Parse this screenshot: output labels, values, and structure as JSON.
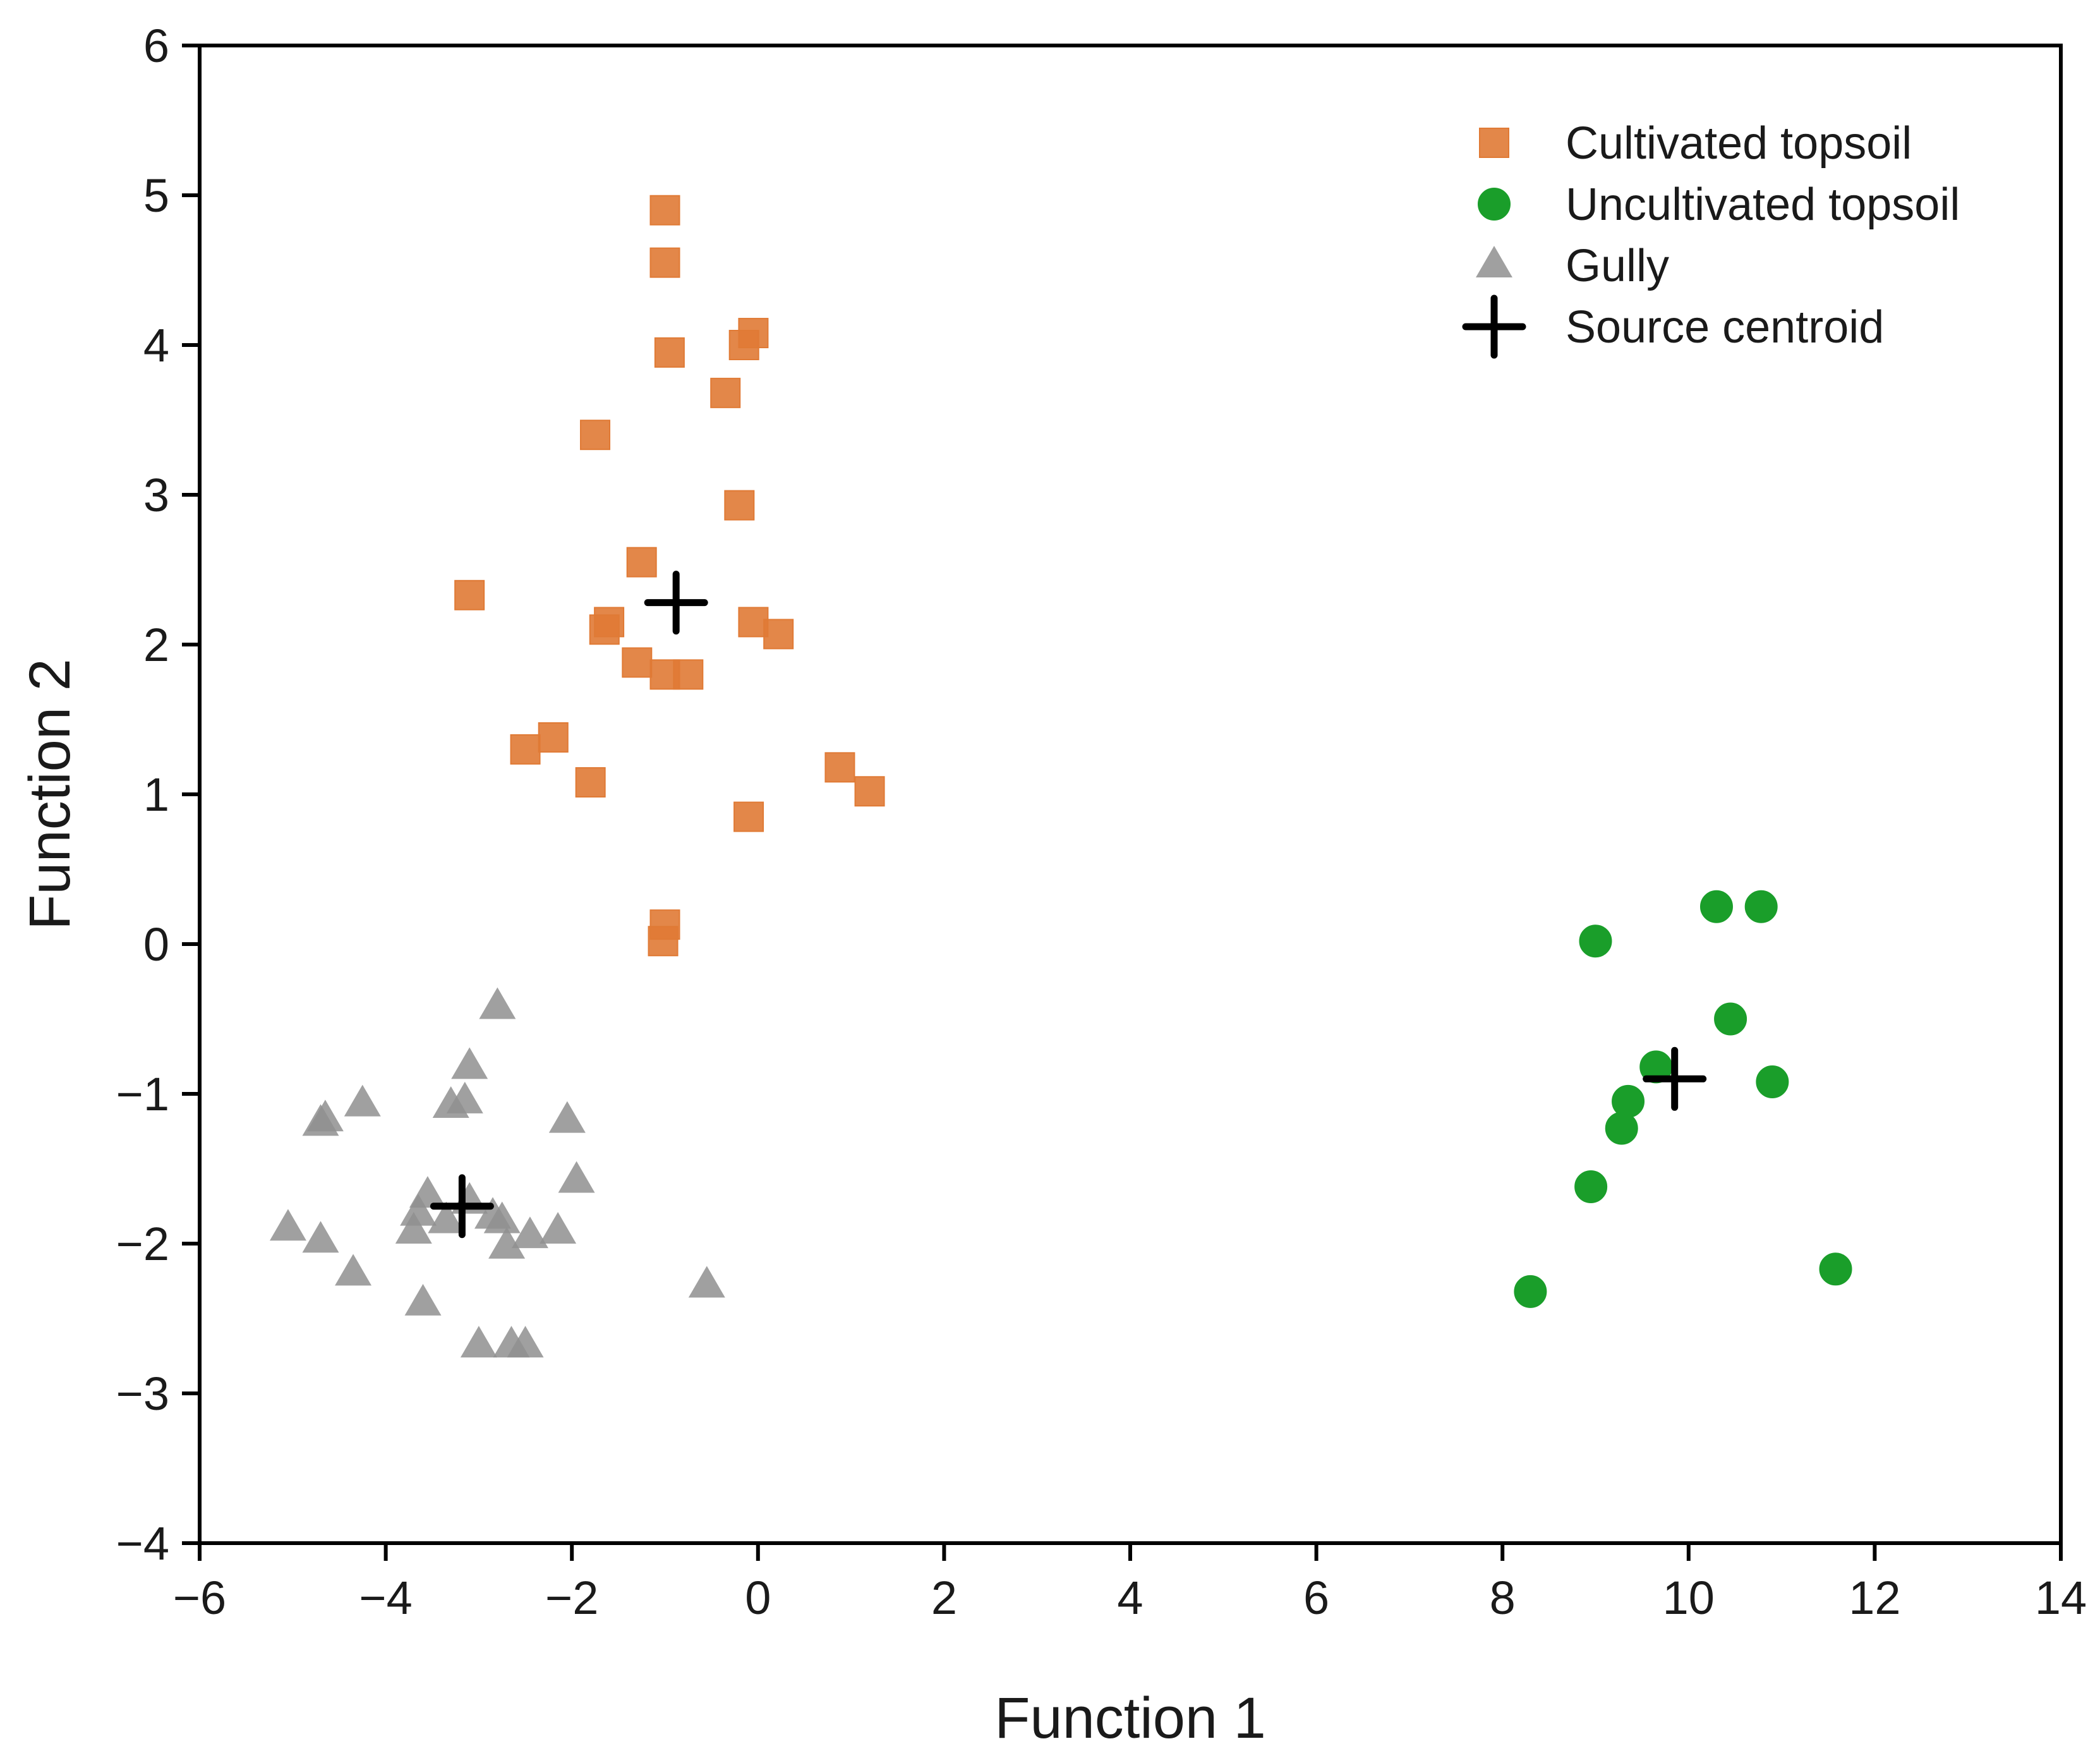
{
  "chart_data": {
    "type": "scatter",
    "title": "",
    "xlabel": "Function 1",
    "ylabel": "Function 2",
    "xlim": [
      -6,
      14
    ],
    "ylim": [
      -4,
      6
    ],
    "xticks": [
      -6,
      -4,
      -2,
      0,
      2,
      4,
      6,
      8,
      10,
      12,
      14
    ],
    "yticks": [
      -4,
      -3,
      -2,
      -1,
      0,
      1,
      2,
      3,
      4,
      5,
      6
    ],
    "xtick_labels": [
      "−6",
      "−4",
      "−2",
      "0",
      "2",
      "4",
      "6",
      "8",
      "10",
      "12",
      "14"
    ],
    "ytick_labels": [
      "−4",
      "−3",
      "−2",
      "−1",
      "0",
      "1",
      "2",
      "3",
      "4",
      "5",
      "6"
    ],
    "grid": false,
    "legend_position": "top-right",
    "series": [
      {
        "name": "Cultivated topsoil",
        "marker": "square",
        "color": "#E07A35",
        "points": [
          [
            -1.0,
            4.9
          ],
          [
            -1.0,
            4.55
          ],
          [
            -0.95,
            3.95
          ],
          [
            -0.05,
            4.08
          ],
          [
            -0.15,
            4.0
          ],
          [
            -0.35,
            3.68
          ],
          [
            -1.75,
            3.4
          ],
          [
            -0.2,
            2.93
          ],
          [
            -1.25,
            2.55
          ],
          [
            -3.1,
            2.33
          ],
          [
            -1.6,
            2.15
          ],
          [
            -1.65,
            2.1
          ],
          [
            -0.05,
            2.15
          ],
          [
            0.22,
            2.07
          ],
          [
            -1.3,
            1.88
          ],
          [
            -1.0,
            1.8
          ],
          [
            -0.75,
            1.8
          ],
          [
            -2.5,
            1.3
          ],
          [
            -2.2,
            1.38
          ],
          [
            -1.8,
            1.08
          ],
          [
            0.88,
            1.18
          ],
          [
            1.2,
            1.02
          ],
          [
            -0.1,
            0.85
          ],
          [
            -1.0,
            0.13
          ],
          [
            -1.02,
            0.02
          ]
        ]
      },
      {
        "name": "Uncultivated topsoil",
        "marker": "circle",
        "color": "#1A9E2A",
        "points": [
          [
            9.0,
            0.02
          ],
          [
            10.3,
            0.25
          ],
          [
            10.78,
            0.25
          ],
          [
            10.45,
            -0.5
          ],
          [
            9.65,
            -0.82
          ],
          [
            10.9,
            -0.92
          ],
          [
            9.35,
            -1.05
          ],
          [
            9.28,
            -1.23
          ],
          [
            8.95,
            -1.62
          ],
          [
            11.58,
            -2.17
          ],
          [
            8.3,
            -2.32
          ]
        ]
      },
      {
        "name": "Gully",
        "marker": "triangle",
        "color": "#8F8F8F",
        "points": [
          [
            -2.8,
            -0.42
          ],
          [
            -3.1,
            -0.82
          ],
          [
            -4.25,
            -1.07
          ],
          [
            -4.65,
            -1.17
          ],
          [
            -4.7,
            -1.2
          ],
          [
            -3.3,
            -1.08
          ],
          [
            -3.15,
            -1.05
          ],
          [
            -2.05,
            -1.18
          ],
          [
            -1.95,
            -1.58
          ],
          [
            -3.55,
            -1.68
          ],
          [
            -3.65,
            -1.8
          ],
          [
            -3.1,
            -1.72
          ],
          [
            -2.85,
            -1.82
          ],
          [
            -3.35,
            -1.85
          ],
          [
            -2.75,
            -1.85
          ],
          [
            -2.7,
            -2.02
          ],
          [
            -3.7,
            -1.92
          ],
          [
            -2.45,
            -1.95
          ],
          [
            -2.15,
            -1.92
          ],
          [
            -5.05,
            -1.9
          ],
          [
            -4.7,
            -1.98
          ],
          [
            -4.35,
            -2.2
          ],
          [
            -3.6,
            -2.4
          ],
          [
            -0.55,
            -2.28
          ],
          [
            -3.0,
            -2.68
          ],
          [
            -2.65,
            -2.68
          ],
          [
            -2.5,
            -2.68
          ]
        ]
      }
    ],
    "centroids": {
      "name": "Source centroid",
      "marker": "plus",
      "color": "#000000",
      "points": [
        [
          -0.88,
          2.28
        ],
        [
          9.85,
          -0.9
        ],
        [
          -3.18,
          -1.75
        ]
      ]
    },
    "legend": [
      "Cultivated topsoil",
      "Uncultivated topsoil",
      "Gully",
      "Source centroid"
    ]
  }
}
